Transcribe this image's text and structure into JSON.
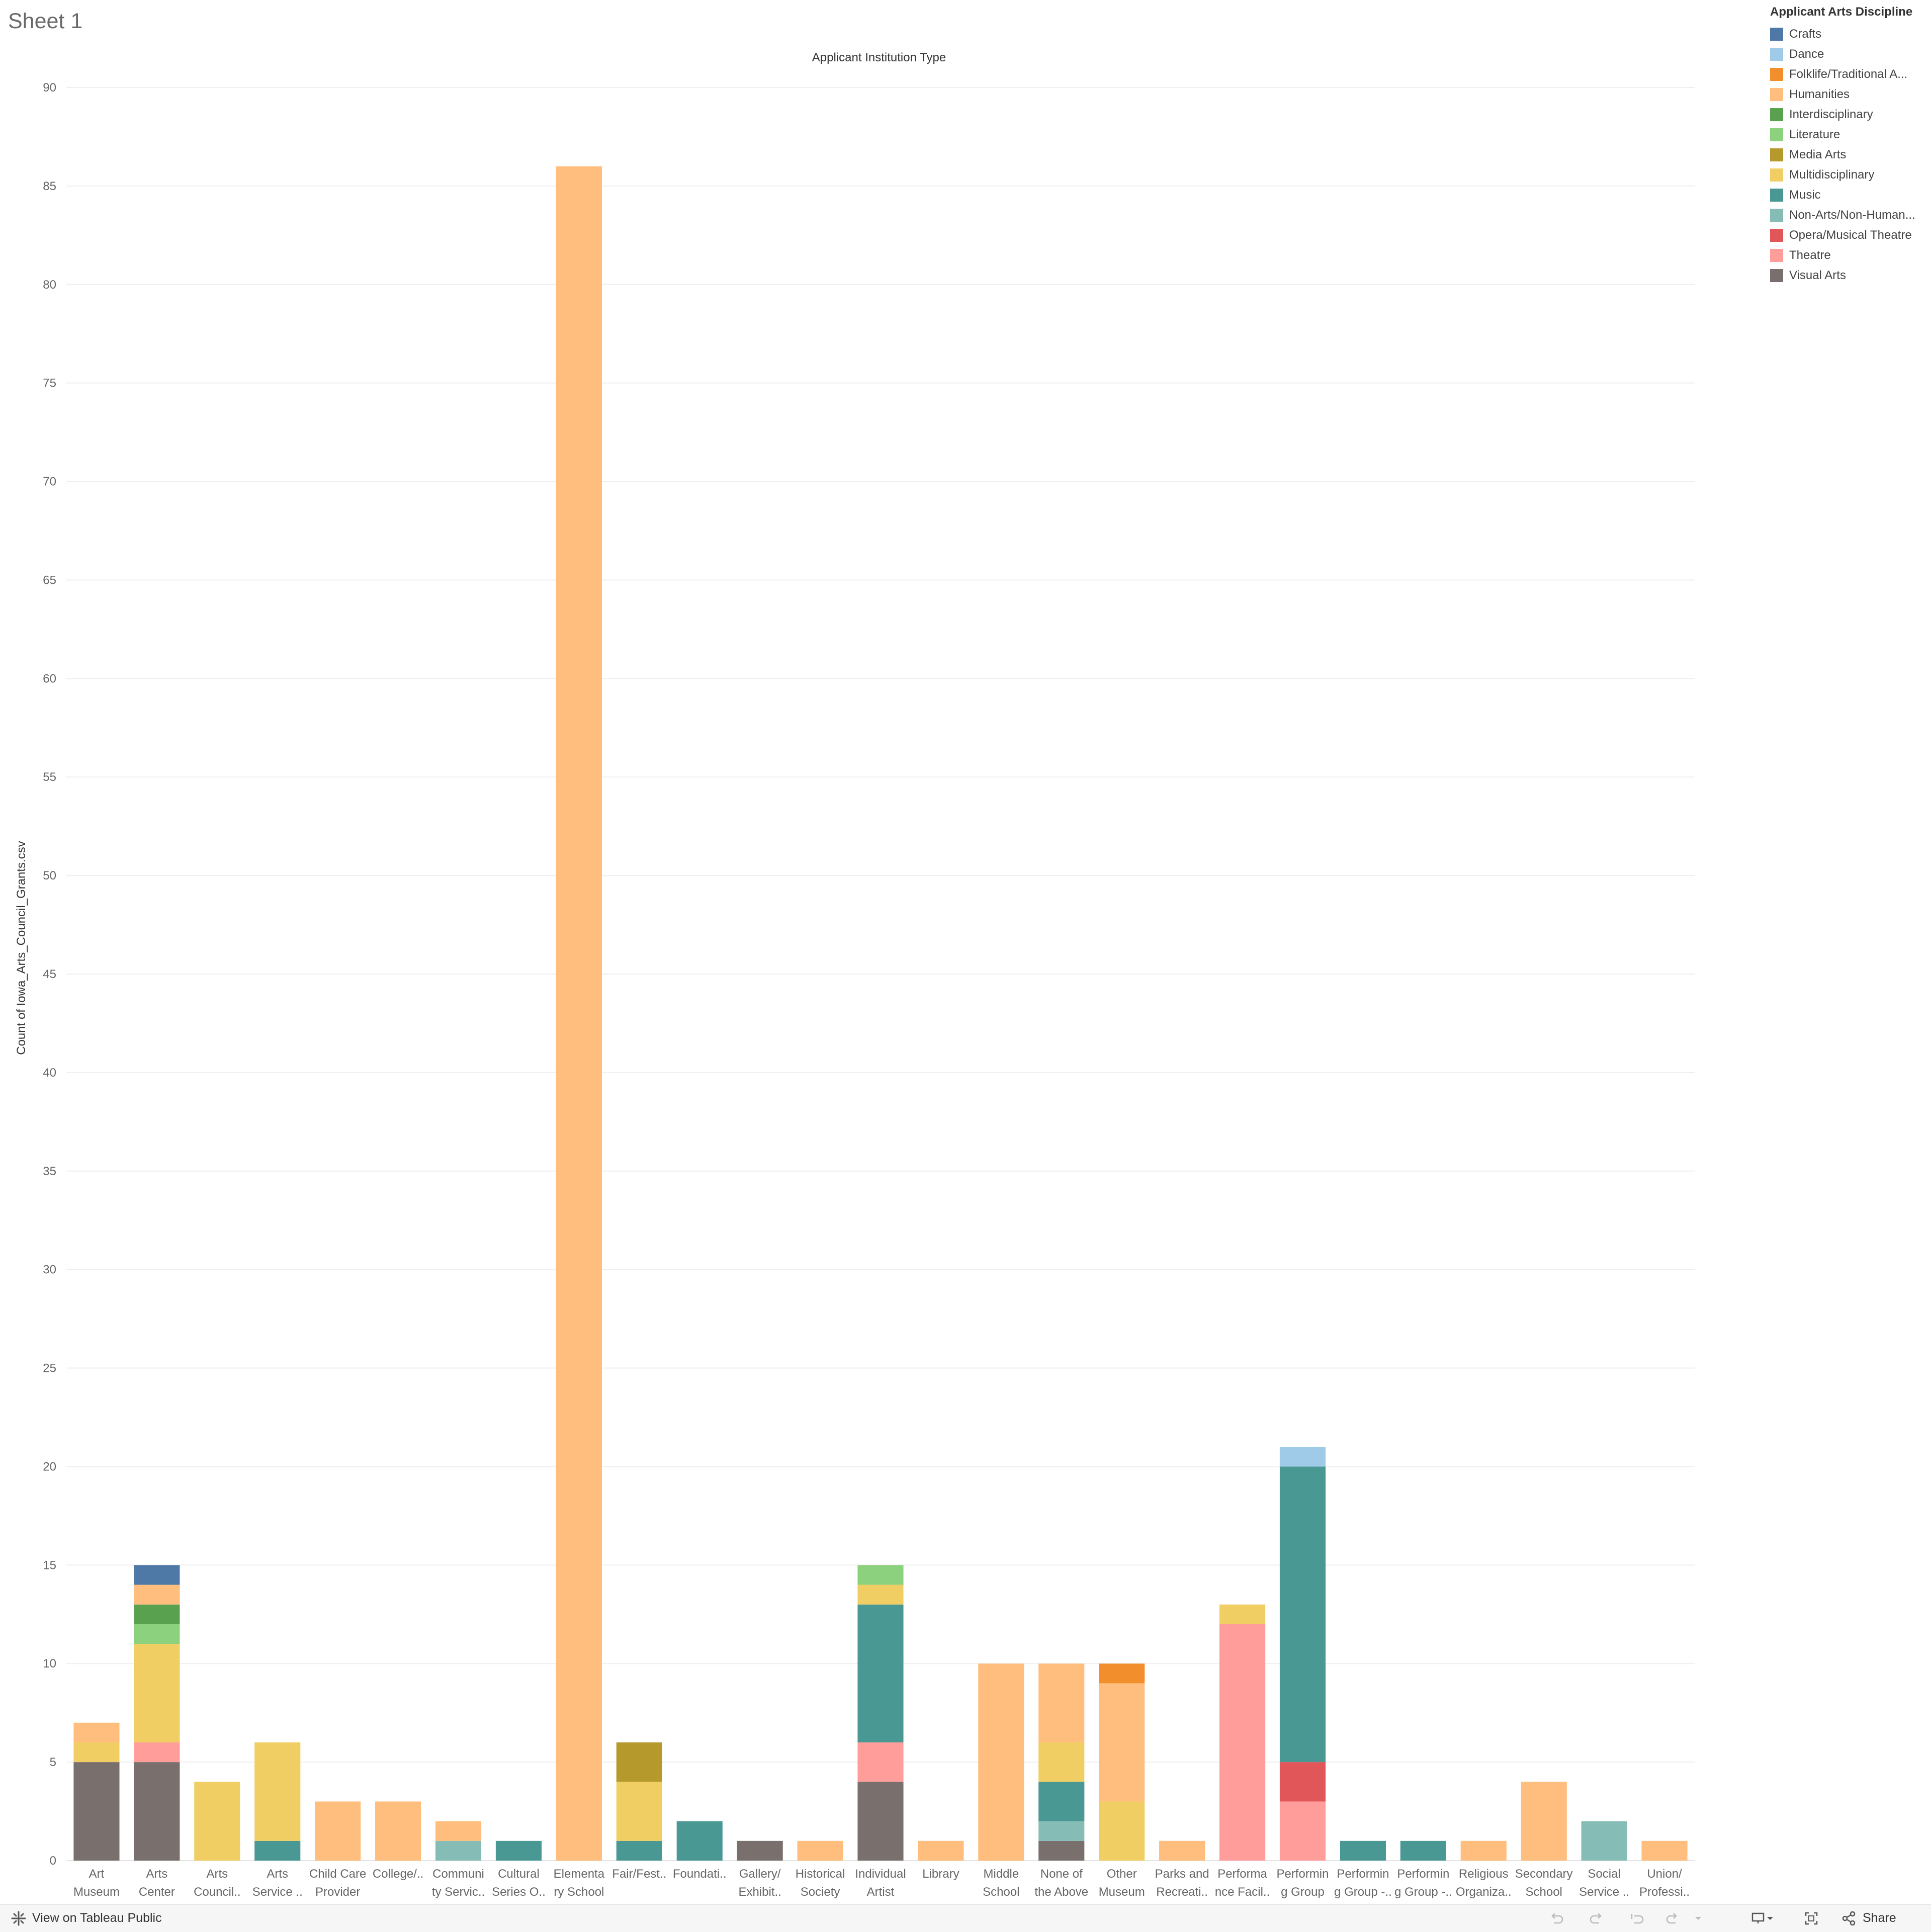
{
  "sheet_title": "Sheet 1",
  "footer": {
    "view_on_tableau": "View on Tableau Public",
    "share": "Share",
    "icons": [
      "undo-icon",
      "redo-icon",
      "revert-icon",
      "refresh-icon",
      "pause-icon",
      "device-preview-icon",
      "fullscreen-icon",
      "share-icon"
    ]
  },
  "legend": {
    "title": "Applicant Arts Discipline",
    "items": [
      {
        "label": "Crafts",
        "color": "#4e79a7"
      },
      {
        "label": "Dance",
        "color": "#a0cbe8"
      },
      {
        "label": "Folklife/Traditional A...",
        "color": "#f28e2b"
      },
      {
        "label": "Humanities",
        "color": "#ffbe7d"
      },
      {
        "label": "Interdisciplinary",
        "color": "#59a14f"
      },
      {
        "label": "Literature",
        "color": "#8cd17d"
      },
      {
        "label": "Media Arts",
        "color": "#b6992d"
      },
      {
        "label": "Multidisciplinary",
        "color": "#f1ce63"
      },
      {
        "label": "Music",
        "color": "#499894"
      },
      {
        "label": "Non-Arts/Non-Human...",
        "color": "#86bcb6"
      },
      {
        "label": "Opera/Musical Theatre",
        "color": "#e15759"
      },
      {
        "label": "Theatre",
        "color": "#ff9d9a"
      },
      {
        "label": "Visual Arts",
        "color": "#79706e"
      }
    ]
  },
  "chart_data": {
    "type": "bar",
    "stacked": true,
    "title": "Applicant Institution Type",
    "xlabel": "",
    "ylabel": "Count of Iowa_Arts_Council_Grants.csv",
    "ylim": [
      0,
      90
    ],
    "yticks": [
      0,
      5,
      10,
      15,
      20,
      25,
      30,
      35,
      40,
      45,
      50,
      55,
      60,
      65,
      70,
      75,
      80,
      85,
      90
    ],
    "grid": true,
    "legend_position": "right",
    "categories": [
      [
        "Art",
        "Museum"
      ],
      [
        "Arts",
        "Center"
      ],
      [
        "Arts",
        "Council.."
      ],
      [
        "Arts",
        "Service .."
      ],
      [
        "Child Care",
        "Provider"
      ],
      [
        "College/..",
        ""
      ],
      [
        "Communi",
        "ty Servic.."
      ],
      [
        "Cultural",
        "Series O.."
      ],
      [
        "Elementa",
        "ry School"
      ],
      [
        "Fair/Fest..",
        ""
      ],
      [
        "Foundati..",
        ""
      ],
      [
        "Gallery/",
        "Exhibit.."
      ],
      [
        "Historical",
        "Society"
      ],
      [
        "Individual",
        "Artist"
      ],
      [
        "Library",
        ""
      ],
      [
        "Middle",
        "School"
      ],
      [
        "None of",
        "the Above"
      ],
      [
        "Other",
        "Museum"
      ],
      [
        "Parks and",
        "Recreati.."
      ],
      [
        "Performa",
        "nce Facil.."
      ],
      [
        "Performin",
        "g Group"
      ],
      [
        "Performin",
        "g Group -.."
      ],
      [
        "Performin",
        "g Group -.."
      ],
      [
        "Religious",
        "Organiza.."
      ],
      [
        "Secondary",
        "School"
      ],
      [
        "Social",
        "Service .."
      ],
      [
        "Union/",
        "Professi.."
      ]
    ],
    "stacks": [
      [
        [
          "Visual Arts",
          5
        ],
        [
          "Multidisciplinary",
          1
        ],
        [
          "Humanities",
          1
        ]
      ],
      [
        [
          "Visual Arts",
          5
        ],
        [
          "Theatre",
          1
        ],
        [
          "Multidisciplinary",
          5
        ],
        [
          "Literature",
          1
        ],
        [
          "Interdisciplinary",
          1
        ],
        [
          "Humanities",
          1
        ],
        [
          "Crafts",
          1
        ]
      ],
      [
        [
          "Multidisciplinary",
          4
        ]
      ],
      [
        [
          "Music",
          1
        ],
        [
          "Multidisciplinary",
          5
        ]
      ],
      [
        [
          "Humanities",
          3
        ]
      ],
      [
        [
          "Humanities",
          3
        ]
      ],
      [
        [
          "Non-Arts/Non-Human...",
          1
        ],
        [
          "Humanities",
          1
        ]
      ],
      [
        [
          "Music",
          1
        ]
      ],
      [
        [
          "Humanities",
          86
        ]
      ],
      [
        [
          "Music",
          1
        ],
        [
          "Multidisciplinary",
          3
        ],
        [
          "Media Arts",
          2
        ]
      ],
      [
        [
          "Music",
          2
        ]
      ],
      [
        [
          "Visual Arts",
          1
        ]
      ],
      [
        [
          "Humanities",
          1
        ]
      ],
      [
        [
          "Visual Arts",
          4
        ],
        [
          "Theatre",
          2
        ],
        [
          "Music",
          7
        ],
        [
          "Multidisciplinary",
          1
        ],
        [
          "Literature",
          1
        ]
      ],
      [
        [
          "Humanities",
          1
        ]
      ],
      [
        [
          "Humanities",
          10
        ]
      ],
      [
        [
          "Visual Arts",
          1
        ],
        [
          "Non-Arts/Non-Human...",
          1
        ],
        [
          "Music",
          2
        ],
        [
          "Multidisciplinary",
          2
        ],
        [
          "Humanities",
          4
        ]
      ],
      [
        [
          "Multidisciplinary",
          3
        ],
        [
          "Humanities",
          6
        ],
        [
          "Folklife/Traditional A...",
          1
        ]
      ],
      [
        [
          "Humanities",
          1
        ]
      ],
      [
        [
          "Theatre",
          12
        ],
        [
          "Multidisciplinary",
          1
        ]
      ],
      [
        [
          "Theatre",
          3
        ],
        [
          "Opera/Musical Theatre",
          2
        ],
        [
          "Music",
          15
        ],
        [
          "Dance",
          1
        ]
      ],
      [
        [
          "Music",
          1
        ]
      ],
      [
        [
          "Music",
          1
        ]
      ],
      [
        [
          "Humanities",
          1
        ]
      ],
      [
        [
          "Humanities",
          4
        ]
      ],
      [
        [
          "Non-Arts/Non-Human...",
          2
        ]
      ],
      [
        [
          "Humanities",
          1
        ]
      ]
    ]
  }
}
